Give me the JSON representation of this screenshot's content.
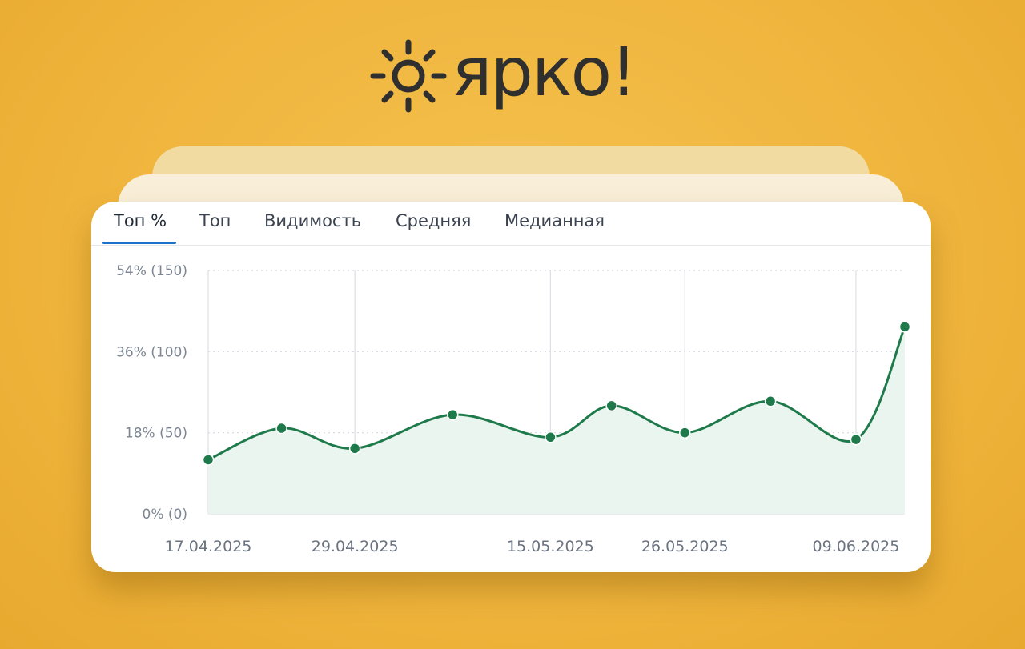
{
  "brand": {
    "name": "яркo!",
    "logo_text": "ярко!",
    "icon": "sun-icon",
    "text_color": "#2f2f2f"
  },
  "tabs": [
    {
      "label": "Топ %",
      "active": true
    },
    {
      "label": "Топ",
      "active": false
    },
    {
      "label": "Видимость",
      "active": false
    },
    {
      "label": "Средняя",
      "active": false
    },
    {
      "label": "Медианная",
      "active": false
    }
  ],
  "colors": {
    "background": "#efb43c",
    "line": "#1e7a4a",
    "area": "#eaf5f0",
    "tab_accent": "#1a73c9"
  },
  "chart_data": {
    "type": "area",
    "title": "",
    "xlabel": "",
    "ylabel": "",
    "ylim": [
      0,
      54
    ],
    "yticks": [
      {
        "value": 0,
        "label": "0% (0)"
      },
      {
        "value": 18,
        "label": "18% (50)"
      },
      {
        "value": 36,
        "label": "36% (100)"
      },
      {
        "value": 54,
        "label": "54% (150)"
      }
    ],
    "x_tick_labels": [
      "17.04.2025",
      "29.04.2025",
      "15.05.2025",
      "26.05.2025",
      "09.06.2025"
    ],
    "grid": true,
    "legend": "none",
    "series": [
      {
        "points": [
          {
            "x": "17.04.2025",
            "y": 12
          },
          {
            "x": "23.04.2025",
            "y": 19
          },
          {
            "x": "29.04.2025",
            "y": 14.5
          },
          {
            "x": "07.05.2025",
            "y": 22
          },
          {
            "x": "15.05.2025",
            "y": 17
          },
          {
            "x": "20.05.2025",
            "y": 24
          },
          {
            "x": "26.05.2025",
            "y": 18
          },
          {
            "x": "02.06.2025",
            "y": 25
          },
          {
            "x": "09.06.2025",
            "y": 16.5
          },
          {
            "x": "13.06.2025",
            "y": 41.5
          }
        ]
      }
    ]
  }
}
